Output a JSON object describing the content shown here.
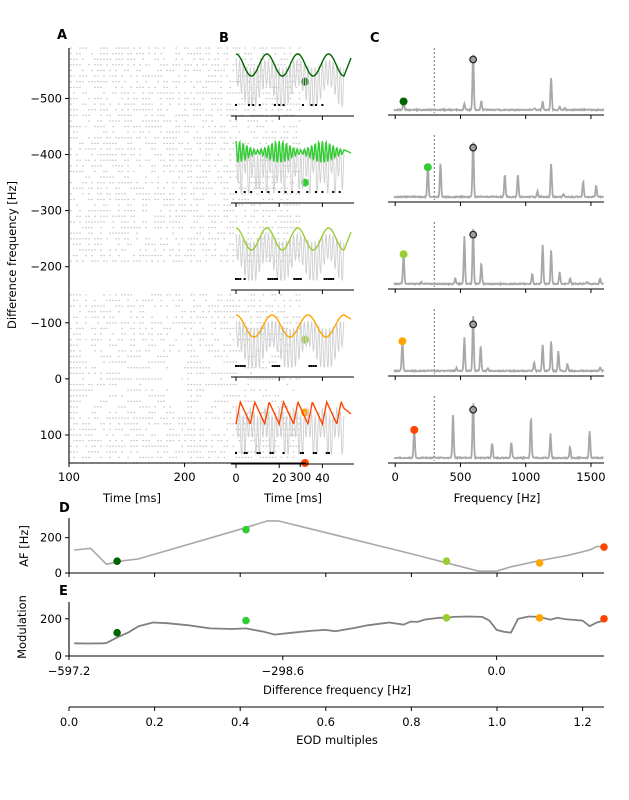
{
  "figure": {
    "panel_labels": [
      "A",
      "B",
      "C",
      "D",
      "E"
    ]
  },
  "colors": {
    "mark1": "#006400",
    "mark2": "#32CD32",
    "mark3": "#9ACD32",
    "mark4": "#FFA500",
    "mark5": "#FF4500",
    "trace": "#a8a8a8",
    "trace_dark": "#808080",
    "raster": "#c8c8c8",
    "peak_marker_fill": "#a0a0a0"
  },
  "chart_data": [
    {
      "panel": "A",
      "type": "scatter",
      "title": "",
      "xlabel": "Time [ms]",
      "ylabel": "Difference frequency [Hz]",
      "xlim": [
        100,
        305
      ],
      "ylim": [
        150,
        -590
      ],
      "xticks": [
        100,
        200,
        300
      ],
      "xtick_labels": [
        "100",
        "200",
        "300"
      ],
      "yticks": [
        -500,
        -400,
        -300,
        -200,
        -100,
        0,
        100
      ],
      "ytick_labels": [
        "−500",
        "−400",
        "−300",
        "−200",
        "−100",
        "0",
        "100"
      ],
      "raster_rows_df": [
        -590,
        -580,
        -570,
        -560,
        -550,
        -540,
        -530,
        -520,
        -510,
        -500,
        -490,
        -480,
        -470,
        -460,
        -450,
        -440,
        -430,
        -420,
        -410,
        -400,
        -390,
        -380,
        -370,
        -360,
        -350,
        -340,
        -330,
        -320,
        -310,
        -300,
        -290,
        -280,
        -270,
        -260,
        -250,
        -240,
        -230,
        -220,
        -210,
        -200,
        -190,
        -180,
        -170,
        -160,
        -150,
        -140,
        -130,
        -120,
        -110,
        -100,
        -90,
        -80,
        -70,
        -60,
        -50,
        -40,
        -30,
        -20,
        -10,
        0,
        10,
        20,
        30,
        40,
        50,
        60,
        70,
        80,
        90,
        100,
        110,
        120,
        130,
        140,
        150
      ],
      "raster_gap_rows": [
        -200,
        -190,
        -180,
        -170,
        -160
      ],
      "markers": [
        {
          "df": -530,
          "color": "#006400"
        },
        {
          "df": -350,
          "color": "#32CD32"
        },
        {
          "df": -70,
          "color": "#9ACD32"
        },
        {
          "df": 60,
          "color": "#FFA500"
        },
        {
          "df": 150,
          "color": "#FF4500"
        }
      ]
    },
    {
      "panel": "B",
      "type": "line",
      "xlabel": "Time [ms]",
      "xlim": [
        -1,
        50
      ],
      "xticks": [
        0,
        20,
        40
      ],
      "xtick_labels": [
        "0",
        "20",
        "40"
      ],
      "traces": [
        {
          "color": "#006400",
          "envelope": "sine",
          "beat_hz": 70,
          "spike_times_ms": [
            0,
            6,
            8,
            11,
            18,
            20,
            22,
            31,
            35,
            37,
            40
          ]
        },
        {
          "color": "#32CD32",
          "envelope": "zigzag",
          "beat_hz": 250,
          "spike_times_ms": [
            0,
            4,
            7,
            12,
            15,
            20,
            23,
            26,
            29,
            33,
            37,
            40,
            45,
            48
          ]
        },
        {
          "color": "#9ACD32",
          "envelope": "sine",
          "beat_hz": 70,
          "spike_times_ms": [
            0,
            1,
            2,
            4,
            15,
            16,
            17,
            18,
            19,
            27,
            28,
            29,
            30,
            41,
            42,
            43,
            44,
            45
          ]
        },
        {
          "color": "#FFA500",
          "envelope": "sine",
          "beat_hz": 60,
          "spike_times_ms": [
            0,
            1,
            2,
            3,
            4,
            17,
            18,
            19,
            20,
            34,
            35,
            36,
            37
          ]
        },
        {
          "color": "#FF4500",
          "envelope": "sawtooth",
          "beat_hz": 150,
          "spike_times_ms": [
            0,
            4,
            5,
            10,
            11,
            16,
            17,
            22,
            30,
            31,
            36,
            37,
            42,
            43
          ]
        }
      ]
    },
    {
      "panel": "C",
      "type": "line",
      "xlabel": "Frequency [Hz]",
      "xlim": [
        -40,
        1600
      ],
      "xticks": [
        0,
        500,
        1000,
        1500
      ],
      "xtick_labels": [
        "0",
        "500",
        "1000",
        "1500"
      ],
      "dashed_line_hz": 298.6,
      "eod_peak_hz": 597.2,
      "spectra": [
        {
          "color": "#006400",
          "marker_hz": 64,
          "marker_amp": 0.17,
          "peaks": [
            [
              64,
              0.17
            ],
            [
              530,
              0.12
            ],
            [
              597,
              1.0
            ],
            [
              660,
              0.15
            ],
            [
              1070,
              0.03
            ],
            [
              1130,
              0.15
            ],
            [
              1195,
              0.58
            ],
            [
              1260,
              0.06
            ],
            [
              1300,
              0.03
            ]
          ],
          "eod_marker_amp": 0.92
        },
        {
          "color": "#32CD32",
          "marker_hz": 250,
          "marker_amp": 0.55,
          "peaks": [
            [
              250,
              0.55
            ],
            [
              347,
              0.6
            ],
            [
              597,
              1.0
            ],
            [
              840,
              0.4
            ],
            [
              940,
              0.4
            ],
            [
              1090,
              0.1
            ],
            [
              1195,
              0.6
            ],
            [
              1290,
              0.05
            ],
            [
              1440,
              0.28
            ],
            [
              1540,
              0.2
            ]
          ],
          "eod_marker_amp": 0.9
        },
        {
          "color": "#9ACD32",
          "marker_hz": 64,
          "marker_amp": 0.55,
          "peaks": [
            [
              64,
              0.55
            ],
            [
              200,
              0.03
            ],
            [
              460,
              0.1
            ],
            [
              530,
              0.85
            ],
            [
              597,
              1.0
            ],
            [
              660,
              0.37
            ],
            [
              1050,
              0.18
            ],
            [
              1130,
              0.7
            ],
            [
              1195,
              0.6
            ],
            [
              1260,
              0.22
            ],
            [
              1340,
              0.1
            ],
            [
              1470,
              0.04
            ],
            [
              1570,
              0.1
            ]
          ],
          "eod_marker_amp": 0.9
        },
        {
          "color": "#FFA500",
          "marker_hz": 55,
          "marker_amp": 0.55,
          "peaks": [
            [
              55,
              0.55
            ],
            [
              470,
              0.05
            ],
            [
              530,
              0.6
            ],
            [
              597,
              1.0
            ],
            [
              655,
              0.45
            ],
            [
              710,
              0.05
            ],
            [
              1065,
              0.15
            ],
            [
              1130,
              0.47
            ],
            [
              1195,
              0.53
            ],
            [
              1250,
              0.35
            ],
            [
              1320,
              0.12
            ],
            [
              1570,
              0.07
            ]
          ],
          "eod_marker_amp": 0.85
        },
        {
          "color": "#FF4500",
          "marker_hz": 146,
          "marker_amp": 0.52,
          "peaks": [
            [
              146,
              0.52
            ],
            [
              298,
              0.03
            ],
            [
              443,
              0.78
            ],
            [
              597,
              1.0
            ],
            [
              743,
              0.27
            ],
            [
              890,
              0.28
            ],
            [
              1040,
              0.73
            ],
            [
              1190,
              0.43
            ],
            [
              1340,
              0.2
            ],
            [
              1490,
              0.47
            ]
          ],
          "eod_marker_amp": 0.88
        }
      ]
    },
    {
      "panel": "D",
      "type": "line",
      "ylabel": "AF [Hz]",
      "xlim": [
        -597.2,
        150
      ],
      "ylim": [
        0,
        300
      ],
      "yticks": [
        0,
        200
      ],
      "ytick_labels": [
        "0",
        "200"
      ],
      "x": [
        -590,
        -567,
        -545,
        -520,
        -500,
        -360,
        -340,
        -320,
        -305,
        -260,
        -210,
        -120,
        -25,
        0,
        20,
        60,
        100,
        130,
        140,
        150
      ],
      "y": [
        130,
        140,
        50,
        70,
        80,
        245,
        270,
        295,
        295,
        250,
        200,
        110,
        10,
        10,
        35,
        70,
        100,
        130,
        150,
        150
      ],
      "markers": [
        {
          "df": -530,
          "af": 67,
          "color": "#006400"
        },
        {
          "df": -350,
          "af": 245,
          "color": "#32CD32"
        },
        {
          "df": -70,
          "af": 67,
          "color": "#9ACD32"
        },
        {
          "df": 60,
          "af": 57,
          "color": "#FFA500"
        },
        {
          "df": 150,
          "af": 147,
          "color": "#FF4500"
        }
      ]
    },
    {
      "panel": "E",
      "type": "line",
      "ylabel": "Modulation",
      "xlabel": "Difference frequency [Hz]",
      "xlim": [
        -597.2,
        150
      ],
      "ylim": [
        0,
        290
      ],
      "yticks": [
        0,
        200
      ],
      "ytick_labels": [
        "0",
        "200"
      ],
      "xticks": [
        -597.2,
        -298.6,
        0.0
      ],
      "xtick_labels": [
        "−597.2",
        "−298.6",
        "0.0"
      ],
      "x": [
        -590,
        -570,
        -550,
        -545,
        -530,
        -515,
        -500,
        -480,
        -460,
        -430,
        -400,
        -370,
        -350,
        -325,
        -310,
        -285,
        -260,
        -240,
        -225,
        -200,
        -180,
        -150,
        -130,
        -120,
        -110,
        -100,
        -95,
        -80,
        -70,
        -60,
        -40,
        -20,
        -10,
        0,
        10,
        20,
        30,
        45,
        60,
        75,
        85,
        95,
        120,
        130,
        140,
        150
      ],
      "y": [
        68,
        67,
        68,
        70,
        100,
        125,
        160,
        180,
        176,
        165,
        148,
        145,
        148,
        130,
        115,
        125,
        135,
        140,
        133,
        150,
        165,
        180,
        168,
        185,
        183,
        196,
        198,
        205,
        205,
        210,
        212,
        210,
        190,
        140,
        130,
        125,
        200,
        212,
        210,
        195,
        205,
        198,
        190,
        160,
        180,
        190
      ],
      "markers": [
        {
          "df": -530,
          "mod": 125,
          "color": "#006400"
        },
        {
          "df": -350,
          "mod": 190,
          "color": "#32CD32"
        },
        {
          "df": -70,
          "mod": 205,
          "color": "#9ACD32"
        },
        {
          "df": 60,
          "mod": 205,
          "color": "#FFA500"
        },
        {
          "df": 150,
          "mod": 200,
          "color": "#FF4500"
        }
      ]
    },
    {
      "panel": "E-secondary-axis",
      "type": "axis",
      "xlabel": "EOD multiples",
      "xlim": [
        0.0,
        1.25
      ],
      "xticks": [
        0.0,
        0.2,
        0.4,
        0.6,
        0.8,
        1.0,
        1.2
      ],
      "xtick_labels": [
        "0.0",
        "0.2",
        "0.4",
        "0.6",
        "0.8",
        "1.0",
        "1.2"
      ]
    }
  ]
}
